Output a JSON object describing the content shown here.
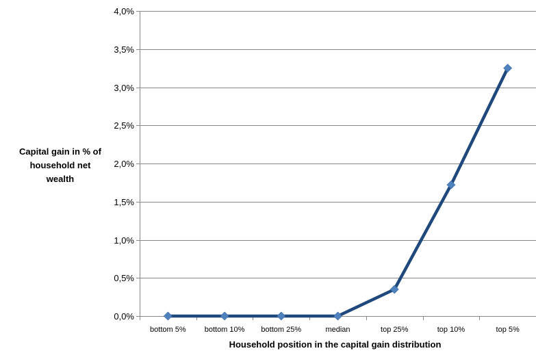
{
  "chart_data": {
    "type": "line",
    "title": "",
    "xlabel": "Household position in the capital gain distribution",
    "ylabel_lines": [
      "Capital gain in % of",
      "household net",
      "wealth"
    ],
    "categories": [
      "bottom 5%",
      "bottom 10%",
      "bottom 25%",
      "median",
      "top 25%",
      "top 10%",
      "top 5%"
    ],
    "series": [
      {
        "values": [
          0.0,
          0.0,
          0.0,
          0.0,
          0.35,
          1.72,
          3.25
        ]
      }
    ],
    "ylim": [
      0,
      4.0
    ],
    "yticks": [
      0.0,
      0.5,
      1.0,
      1.5,
      2.0,
      2.5,
      3.0,
      3.5,
      4.0
    ],
    "ytick_labels": [
      "0,0%",
      "0,5%",
      "1,0%",
      "1,5%",
      "2,0%",
      "2,5%",
      "3,0%",
      "3,5%",
      "4,0%"
    ],
    "grid": true,
    "legend": "none",
    "line_color": "#1f497d",
    "marker_color": "#4f81bd",
    "grid_color": "#868686"
  }
}
